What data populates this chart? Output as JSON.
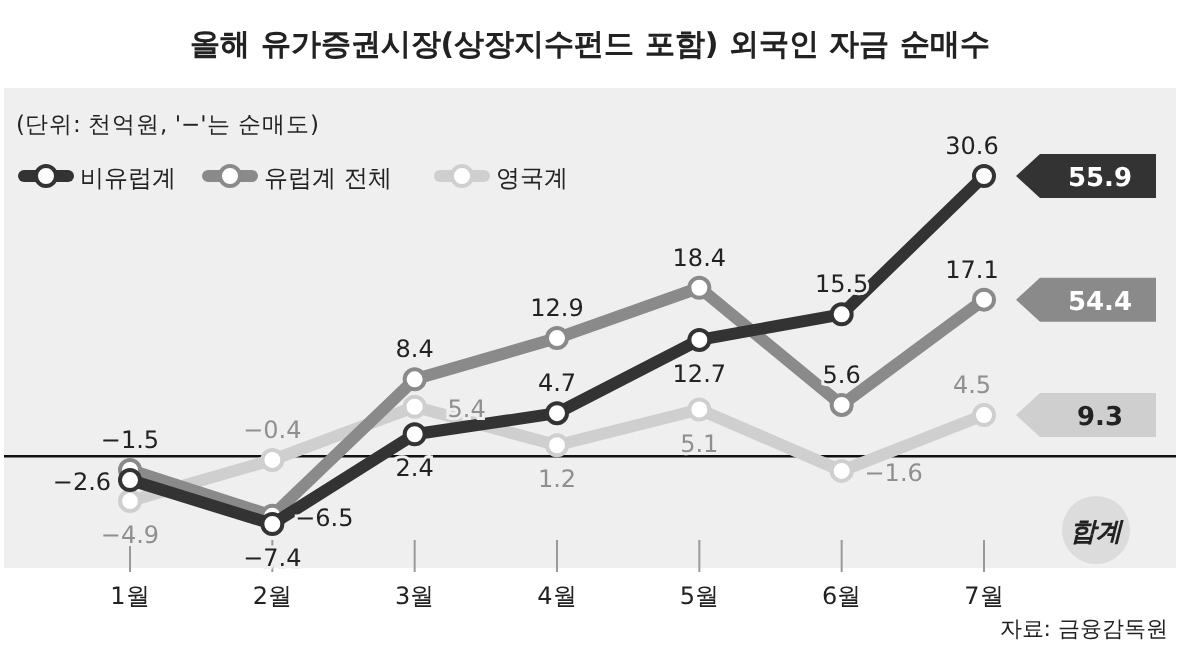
{
  "chart_data": {
    "type": "line",
    "title": "올해 유가증권시장(상장지수펀드 포함) 외국인 자금 순매수",
    "categories": [
      "1월",
      "2월",
      "3월",
      "4월",
      "5월",
      "6월",
      "7월"
    ],
    "series": [
      {
        "name": "비유럽계",
        "color": "#333333",
        "values": [
          -2.6,
          -7.4,
          2.4,
          4.7,
          12.7,
          15.5,
          30.6
        ]
      },
      {
        "name": "유럽계 전체",
        "color": "#8a8a8a",
        "values": [
          -1.5,
          -6.5,
          8.4,
          12.9,
          18.4,
          5.6,
          17.1
        ]
      },
      {
        "name": "영국계",
        "color": "#cfcfcf",
        "values": [
          -4.9,
          -0.4,
          5.4,
          1.2,
          5.1,
          -1.6,
          4.5
        ]
      }
    ],
    "totals": [
      "55.9",
      "54.4",
      "9.3"
    ],
    "annotations": [
      "(단위: 천억원, '−'는 순매도)",
      "합계",
      "자료: 금융감독원"
    ],
    "data_labels": true,
    "marker": "circle",
    "line_style": "solid",
    "legend": "top left"
  }
}
